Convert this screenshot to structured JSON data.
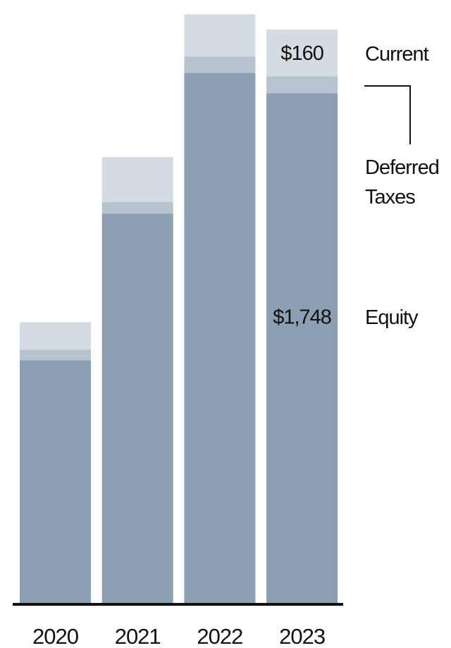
{
  "chart_data": {
    "type": "stacked_bar",
    "categories": [
      "2020",
      "2021",
      "2022",
      "2023"
    ],
    "series": [
      {
        "name": "Equity",
        "color": "#8c9fb3",
        "values": [
          834,
          1336,
          1818,
          1748
        ],
        "value_labels": [
          null,
          null,
          null,
          "$1,748"
        ]
      },
      {
        "name": "Deferred Taxes",
        "color": "#b7c3cf",
        "values": [
          36,
          39,
          55,
          58
        ]
      },
      {
        "name": "Current",
        "color": "#d3dbe3",
        "values": [
          94,
          154,
          145,
          160
        ],
        "value_labels": [
          null,
          null,
          null,
          "$160"
        ]
      }
    ],
    "ylim": [
      0,
      2060
    ]
  }
}
